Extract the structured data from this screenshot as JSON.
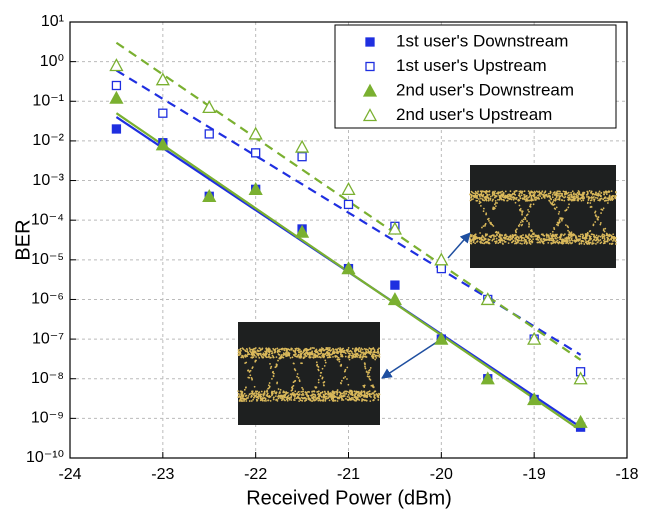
{
  "chart_data": {
    "type": "scatter",
    "x_label": "Received Power (dBm)",
    "y_label": "BER",
    "xlim": [
      -24,
      -18
    ],
    "xticks": [
      -24,
      -23,
      -22,
      -21,
      -20,
      -19,
      -18
    ],
    "ylim": [
      1e-10,
      10
    ],
    "log_y": true,
    "grid": true,
    "legend": "top-right",
    "yticks": [
      {
        "value": 10,
        "label": "10¹"
      },
      {
        "value": 1,
        "label": "10⁰"
      },
      {
        "value": 0.1,
        "label": "10⁻¹"
      },
      {
        "value": 0.01,
        "label": "10⁻²"
      },
      {
        "value": 0.001,
        "label": "10⁻³"
      },
      {
        "value": 0.0001,
        "label": "10⁻⁴"
      },
      {
        "value": 1e-05,
        "label": "10⁻⁵"
      },
      {
        "value": 1e-06,
        "label": "10⁻⁶"
      },
      {
        "value": 1e-07,
        "label": "10⁻⁷"
      },
      {
        "value": 1e-08,
        "label": "10⁻⁸"
      },
      {
        "value": 1e-09,
        "label": "10⁻⁹"
      },
      {
        "value": 1e-10,
        "label": "10⁻¹⁰"
      }
    ],
    "x": [
      -23.5,
      -23,
      -22.5,
      -22,
      -21.5,
      -21,
      -20.5,
      -20,
      -19.5,
      -19,
      -18.5
    ],
    "series": [
      {
        "name": "1st user's Downstream",
        "color": "#1f2fe0",
        "marker": "square",
        "filled": true,
        "values": [
          0.02,
          0.009,
          0.0004,
          0.0006,
          6e-05,
          6e-06,
          2.3e-06,
          1e-07,
          1e-08,
          3e-09,
          6e-10
        ]
      },
      {
        "name": "1st user's Upstream",
        "color": "#1f2fe0",
        "marker": "square",
        "filled": false,
        "values": [
          0.25,
          0.05,
          0.015,
          0.005,
          0.004,
          0.00025,
          7e-05,
          6e-06,
          1e-06,
          1e-07,
          1.5e-08
        ]
      },
      {
        "name": "2nd user's Downstream",
        "color": "#7ab030",
        "marker": "triangle",
        "filled": true,
        "values": [
          0.12,
          0.008,
          0.0004,
          0.0006,
          5e-05,
          6e-06,
          1e-06,
          1e-07,
          1e-08,
          3e-09,
          8e-10
        ]
      },
      {
        "name": "2nd user's Upstream",
        "color": "#7ab030",
        "marker": "triangle",
        "filled": false,
        "values": [
          0.8,
          0.35,
          0.07,
          0.015,
          0.007,
          0.0006,
          6e-05,
          1e-05,
          1e-06,
          1e-07,
          1e-08
        ]
      }
    ],
    "fit_lines": [
      {
        "color": "#1f2fe0",
        "dashed": false,
        "x": [
          -23.5,
          -18.5
        ],
        "values": [
          0.04,
          6e-10
        ]
      },
      {
        "color": "#1f2fe0",
        "dashed": true,
        "x": [
          -23.5,
          -18.5
        ],
        "values": [
          0.6,
          4e-08
        ]
      },
      {
        "color": "#7ab030",
        "dashed": false,
        "x": [
          -23.5,
          -18.5
        ],
        "values": [
          0.05,
          5e-10
        ]
      },
      {
        "color": "#7ab030",
        "dashed": true,
        "x": [
          -23.5,
          -18.5
        ],
        "values": [
          3,
          3e-08
        ]
      }
    ]
  }
}
